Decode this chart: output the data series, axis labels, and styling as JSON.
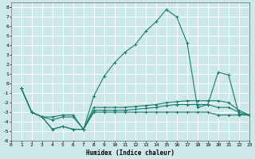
{
  "xlabel": "Humidex (Indice chaleur)",
  "xlim": [
    0,
    23
  ],
  "ylim": [
    -6,
    8.5
  ],
  "ytick_vals": [
    -6,
    -5,
    -4,
    -3,
    -2,
    -1,
    0,
    1,
    2,
    3,
    4,
    5,
    6,
    7,
    8
  ],
  "xtick_vals": [
    0,
    1,
    2,
    3,
    4,
    5,
    6,
    7,
    8,
    9,
    10,
    11,
    12,
    13,
    14,
    15,
    16,
    17,
    18,
    19,
    20,
    21,
    22,
    23
  ],
  "bg_color": "#cde8e8",
  "grid_color": "#ffffff",
  "line_color": "#1a7a6e",
  "lines": [
    {
      "x": [
        1,
        2,
        3,
        4,
        5,
        6,
        7,
        8,
        9,
        10,
        11,
        12,
        13,
        14,
        15,
        16,
        17,
        18,
        19,
        20,
        21,
        22,
        23
      ],
      "y": [
        -0.5,
        -3.0,
        -3.5,
        -4.8,
        -4.5,
        -4.8,
        -4.8,
        -1.3,
        0.8,
        2.2,
        3.3,
        4.1,
        5.5,
        6.5,
        7.8,
        7.0,
        4.3,
        -2.5,
        -2.2,
        1.2,
        0.9,
        -3.2,
        -3.3
      ]
    },
    {
      "x": [
        1,
        2,
        3,
        4,
        5,
        6,
        7,
        8,
        9,
        10,
        11,
        12,
        13,
        14,
        15,
        16,
        17,
        18,
        19,
        20,
        21,
        22,
        23
      ],
      "y": [
        -0.5,
        -3.0,
        -3.5,
        -3.5,
        -3.3,
        -3.3,
        -4.8,
        -2.5,
        -2.5,
        -2.5,
        -2.5,
        -2.4,
        -2.3,
        -2.2,
        -2.0,
        -1.9,
        -1.8,
        -1.8,
        -1.8,
        -1.8,
        -2.0,
        -2.8,
        -3.3
      ]
    },
    {
      "x": [
        1,
        2,
        3,
        4,
        5,
        6,
        7,
        8,
        9,
        10,
        11,
        12,
        13,
        14,
        15,
        16,
        17,
        18,
        19,
        20,
        21,
        22,
        23
      ],
      "y": [
        -0.5,
        -3.0,
        -3.5,
        -3.8,
        -3.5,
        -3.5,
        -4.8,
        -2.8,
        -2.8,
        -2.8,
        -2.8,
        -2.7,
        -2.6,
        -2.5,
        -2.3,
        -2.2,
        -2.2,
        -2.2,
        -2.2,
        -2.5,
        -2.5,
        -3.0,
        -3.3
      ]
    },
    {
      "x": [
        1,
        2,
        3,
        4,
        5,
        6,
        7,
        8,
        9,
        10,
        11,
        12,
        13,
        14,
        15,
        16,
        17,
        18,
        19,
        20,
        21,
        22,
        23
      ],
      "y": [
        -0.5,
        -3.0,
        -3.5,
        -4.8,
        -4.5,
        -4.8,
        -4.8,
        -3.0,
        -3.0,
        -3.0,
        -3.0,
        -3.0,
        -3.0,
        -3.0,
        -3.0,
        -3.0,
        -3.0,
        -3.0,
        -3.0,
        -3.3,
        -3.3,
        -3.3,
        -3.3
      ]
    }
  ]
}
